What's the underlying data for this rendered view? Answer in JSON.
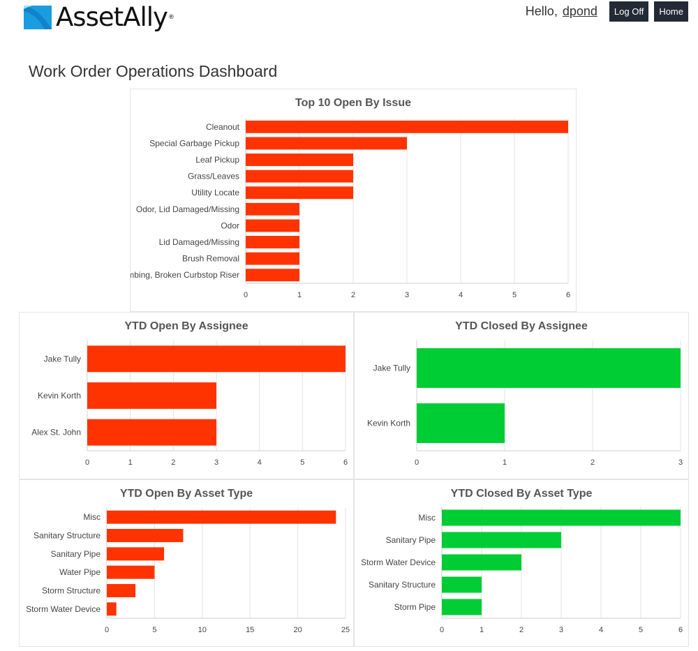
{
  "header": {
    "logo_text": "AssetAlly",
    "logo_tm": "®",
    "greeting": "Hello,",
    "username": "dpond",
    "logoff_label": "Log Off",
    "home_label": "Home"
  },
  "page": {
    "title": "Work Order Operations Dashboard"
  },
  "colors": {
    "open": "#ff3300",
    "closed": "#00cc33",
    "button_bg": "#222a36",
    "logo_blue": "#1b9be0"
  },
  "chart_data": [
    {
      "id": "top10",
      "type": "bar",
      "orientation": "horizontal",
      "title": "Top 10 Open By Issue",
      "categories": [
        "Cleanout",
        "Special Garbage Pickup",
        "Leaf Pickup",
        "Grass/Leaves",
        "Utility Locate",
        "Odor, Lid Damaged/Missing",
        "Odor",
        "Lid Damaged/Missing",
        "Brush Removal",
        "Plumbing, Broken Curbstop Riser"
      ],
      "values": [
        6,
        3,
        2,
        2,
        2,
        1,
        1,
        1,
        1,
        1
      ],
      "xlim": [
        0,
        6
      ],
      "ticks": [
        0,
        1,
        2,
        3,
        4,
        5,
        6
      ],
      "grid": true,
      "color": "#ff3300"
    },
    {
      "id": "open-assignee",
      "type": "bar",
      "orientation": "horizontal",
      "title": "YTD Open By Assignee",
      "categories": [
        "Jake Tully",
        "Kevin Korth",
        "Alex St. John"
      ],
      "values": [
        6,
        3,
        3
      ],
      "xlim": [
        0,
        6
      ],
      "ticks": [
        0,
        1,
        2,
        3,
        4,
        5,
        6
      ],
      "grid": true,
      "color": "#ff3300"
    },
    {
      "id": "closed-assignee",
      "type": "bar",
      "orientation": "horizontal",
      "title": "YTD Closed By Assignee",
      "categories": [
        "Jake Tully",
        "Kevin Korth"
      ],
      "values": [
        3,
        1
      ],
      "xlim": [
        0,
        3
      ],
      "ticks": [
        0,
        1,
        2,
        3
      ],
      "grid": true,
      "color": "#00cc33"
    },
    {
      "id": "open-asset",
      "type": "bar",
      "orientation": "horizontal",
      "title": "YTD Open By Asset Type",
      "categories": [
        "Misc",
        "Sanitary Structure",
        "Sanitary Pipe",
        "Water Pipe",
        "Storm Structure",
        "Storm Water Device"
      ],
      "values": [
        24,
        8,
        6,
        5,
        3,
        1
      ],
      "xlim": [
        0,
        25
      ],
      "ticks": [
        0,
        5,
        10,
        15,
        20,
        25
      ],
      "grid": true,
      "color": "#ff3300"
    },
    {
      "id": "closed-asset",
      "type": "bar",
      "orientation": "horizontal",
      "title": "YTD Closed By Asset Type",
      "categories": [
        "Misc",
        "Sanitary Pipe",
        "Storm Water Device",
        "Sanitary Structure",
        "Storm Pipe"
      ],
      "values": [
        6,
        3,
        2,
        1,
        1
      ],
      "xlim": [
        0,
        6
      ],
      "ticks": [
        0,
        1,
        2,
        3,
        4,
        5,
        6
      ],
      "grid": true,
      "color": "#00cc33"
    }
  ]
}
